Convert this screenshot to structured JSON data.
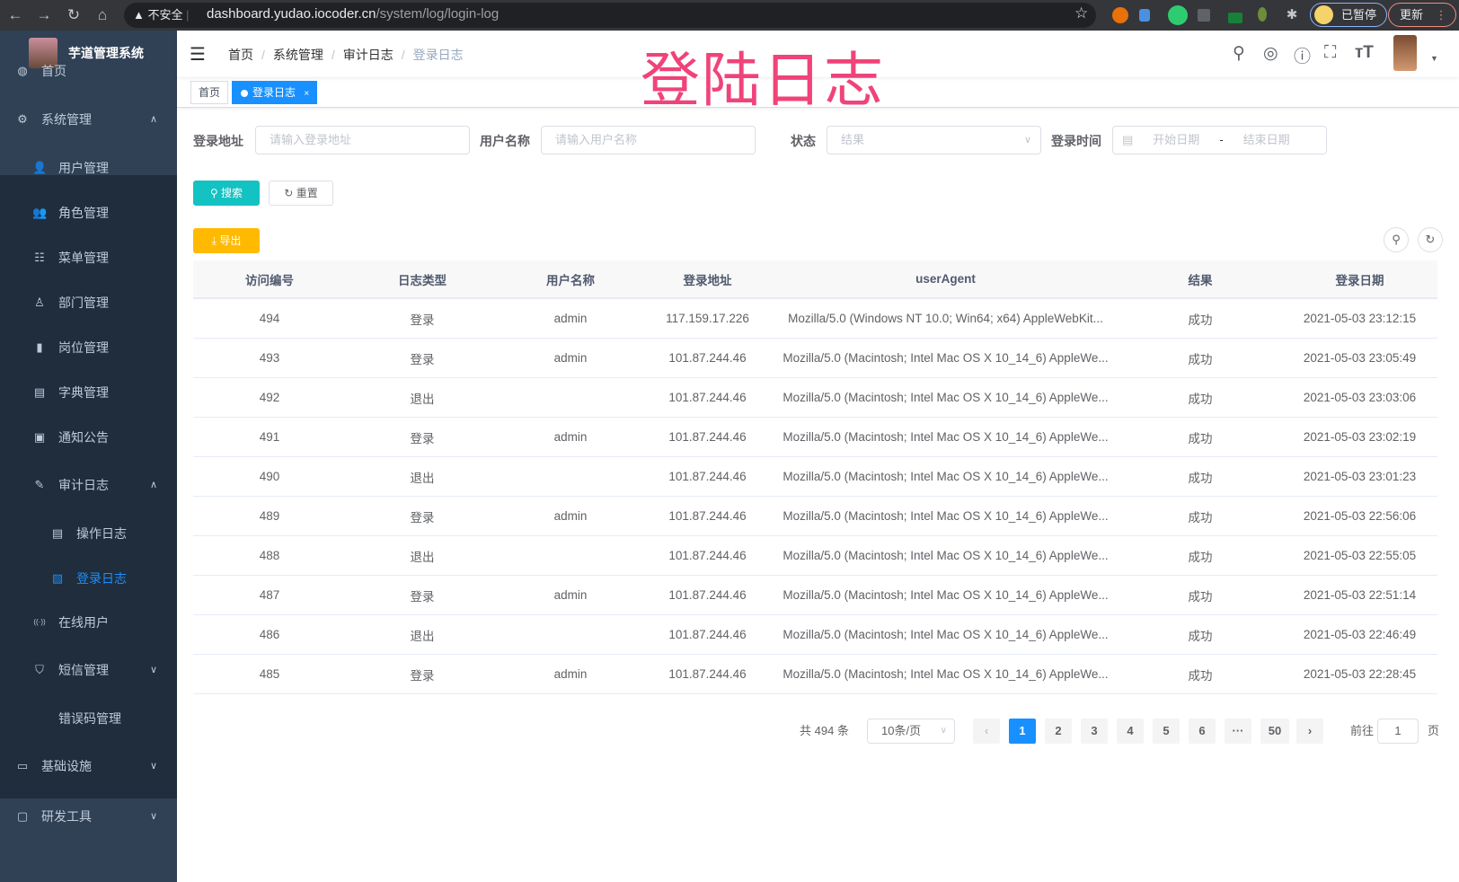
{
  "browser": {
    "security_label": "不安全",
    "url_host": "dashboard.yudao.iocoder.cn",
    "url_path": "/system/log/login-log",
    "paused_label": "已暂停",
    "update_label": "更新"
  },
  "overlay_title": "登陆日志",
  "sidebar": {
    "app_title": "芋道管理系统",
    "items": [
      {
        "label": "首页",
        "icon": "dashboard-icon"
      },
      {
        "label": "系统管理",
        "icon": "gear-icon"
      },
      {
        "label": "用户管理",
        "icon": "user-icon"
      },
      {
        "label": "角色管理",
        "icon": "peoples-icon"
      },
      {
        "label": "菜单管理",
        "icon": "tree-table-icon"
      },
      {
        "label": "部门管理",
        "icon": "tree-icon"
      },
      {
        "label": "岗位管理",
        "icon": "post-icon"
      },
      {
        "label": "字典管理",
        "icon": "dict-icon"
      },
      {
        "label": "通知公告",
        "icon": "message-icon"
      },
      {
        "label": "审计日志",
        "icon": "log-icon"
      },
      {
        "label": "操作日志",
        "icon": "form-icon"
      },
      {
        "label": "登录日志",
        "icon": "logininfor-icon"
      },
      {
        "label": "在线用户",
        "icon": "online-icon"
      },
      {
        "label": "短信管理",
        "icon": "shield-icon"
      },
      {
        "label": "错误码管理",
        "icon": "code-icon"
      },
      {
        "label": "基础设施",
        "icon": "monitor-icon"
      },
      {
        "label": "研发工具",
        "icon": "tool-icon"
      }
    ]
  },
  "breadcrumb": [
    "首页",
    "系统管理",
    "审计日志",
    "登录日志"
  ],
  "tags": [
    {
      "label": "首页"
    },
    {
      "label": "登录日志",
      "close": "×"
    }
  ],
  "filters": {
    "ip_label": "登录地址",
    "ip_placeholder": "请输入登录地址",
    "user_label": "用户名称",
    "user_placeholder": "请输入用户名称",
    "status_label": "状态",
    "status_placeholder": "结果",
    "time_label": "登录时间",
    "start_placeholder": "开始日期",
    "sep": "-",
    "end_placeholder": "结束日期"
  },
  "buttons": {
    "search": "搜索",
    "reset": "重置",
    "export": "导出"
  },
  "colors": {
    "primary": "#1890ff",
    "search": "#13c2c2",
    "export": "#ffba00",
    "sidebar": "#304156",
    "active_menu": "#1890ff"
  },
  "table": {
    "columns": [
      "访问编号",
      "日志类型",
      "用户名称",
      "登录地址",
      "userAgent",
      "结果",
      "登录日期"
    ],
    "rows": [
      [
        "494",
        "登录",
        "admin",
        "117.159.17.226",
        "Mozilla/5.0 (Windows NT 10.0; Win64; x64) AppleWebKit...",
        "成功",
        "2021-05-03 23:12:15"
      ],
      [
        "493",
        "登录",
        "admin",
        "101.87.244.46",
        "Mozilla/5.0 (Macintosh; Intel Mac OS X 10_14_6) AppleWe...",
        "成功",
        "2021-05-03 23:05:49"
      ],
      [
        "492",
        "退出",
        "",
        "101.87.244.46",
        "Mozilla/5.0 (Macintosh; Intel Mac OS X 10_14_6) AppleWe...",
        "成功",
        "2021-05-03 23:03:06"
      ],
      [
        "491",
        "登录",
        "admin",
        "101.87.244.46",
        "Mozilla/5.0 (Macintosh; Intel Mac OS X 10_14_6) AppleWe...",
        "成功",
        "2021-05-03 23:02:19"
      ],
      [
        "490",
        "退出",
        "",
        "101.87.244.46",
        "Mozilla/5.0 (Macintosh; Intel Mac OS X 10_14_6) AppleWe...",
        "成功",
        "2021-05-03 23:01:23"
      ],
      [
        "489",
        "登录",
        "admin",
        "101.87.244.46",
        "Mozilla/5.0 (Macintosh; Intel Mac OS X 10_14_6) AppleWe...",
        "成功",
        "2021-05-03 22:56:06"
      ],
      [
        "488",
        "退出",
        "",
        "101.87.244.46",
        "Mozilla/5.0 (Macintosh; Intel Mac OS X 10_14_6) AppleWe...",
        "成功",
        "2021-05-03 22:55:05"
      ],
      [
        "487",
        "登录",
        "admin",
        "101.87.244.46",
        "Mozilla/5.0 (Macintosh; Intel Mac OS X 10_14_6) AppleWe...",
        "成功",
        "2021-05-03 22:51:14"
      ],
      [
        "486",
        "退出",
        "",
        "101.87.244.46",
        "Mozilla/5.0 (Macintosh; Intel Mac OS X 10_14_6) AppleWe...",
        "成功",
        "2021-05-03 22:46:49"
      ],
      [
        "485",
        "登录",
        "admin",
        "101.87.244.46",
        "Mozilla/5.0 (Macintosh; Intel Mac OS X 10_14_6) AppleWe...",
        "成功",
        "2021-05-03 22:28:45"
      ]
    ]
  },
  "pagination": {
    "total_label": "共 494 条",
    "page_size": "10条/页",
    "pages": [
      "1",
      "2",
      "3",
      "4",
      "5",
      "6",
      "···",
      "50"
    ],
    "current": "1",
    "goto_label": "前往",
    "goto_value": "1",
    "page_suffix": "页"
  }
}
